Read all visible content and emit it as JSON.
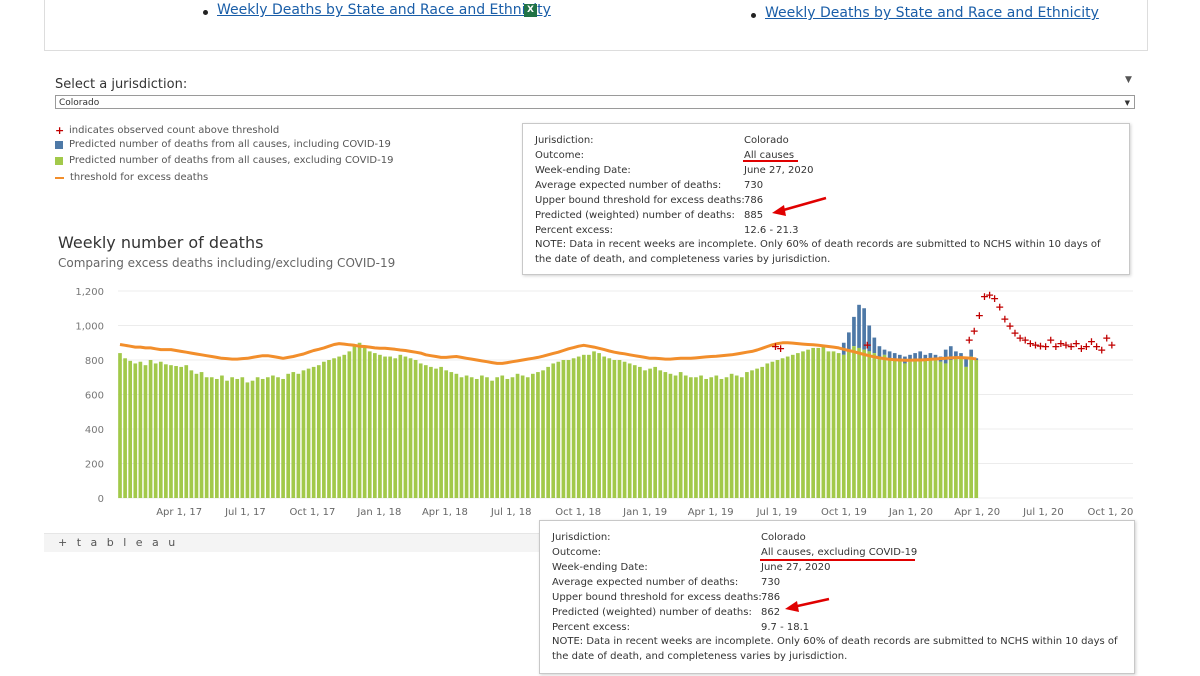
{
  "top_links": {
    "left": "Weekly Deaths by State and Race and Ethnicity",
    "right": "Weekly Deaths by State and Race and Ethnicity",
    "excel_icon": "excel-icon"
  },
  "jurisdiction": {
    "label": "Select a jurisdiction:",
    "selected": "Colorado"
  },
  "legend": {
    "above_threshold": "indicates observed count above threshold",
    "including": "Predicted number of deaths from all causes, including COVID-19",
    "excluding": "Predicted number of deaths from all causes, excluding COVID-19",
    "threshold": "threshold for excess deaths"
  },
  "colors": {
    "including": "#4e79a7",
    "excluding": "#a2c94a",
    "threshold": "#f28e2b",
    "above_threshold": "#c00000",
    "annotation": "#e00000"
  },
  "chart_data": {
    "type": "bar",
    "title": "Weekly number of deaths",
    "subtitle": "Comparing excess deaths including/excluding COVID-19",
    "ylim": [
      0,
      1200
    ],
    "yticks": [
      "1,200",
      "1,000",
      "800",
      "600",
      "400",
      "200",
      "0"
    ],
    "xticks": [
      "Apr 1, 17",
      "Jul 1, 17",
      "Oct 1, 17",
      "Jan 1, 18",
      "Apr 1, 18",
      "Jul 1, 18",
      "Oct 1, 18",
      "Jan 1, 19",
      "Apr 1, 19",
      "Jul 1, 19",
      "Oct 1, 19",
      "Jan 1, 20",
      "Apr 1, 20",
      "Jul 1, 20",
      "Oct 1, 20"
    ],
    "grid": true,
    "weeks_start": "2017-01-07",
    "series": [
      {
        "name": "Predicted number of deaths from all causes, excluding COVID-19",
        "values": [
          840,
          810,
          795,
          780,
          790,
          770,
          800,
          780,
          790,
          775,
          770,
          765,
          760,
          770,
          740,
          720,
          730,
          700,
          700,
          690,
          710,
          680,
          700,
          690,
          700,
          670,
          680,
          700,
          690,
          700,
          710,
          700,
          690,
          720,
          730,
          720,
          740,
          750,
          760,
          770,
          790,
          800,
          810,
          820,
          830,
          850,
          880,
          900,
          880,
          850,
          840,
          830,
          820,
          820,
          810,
          830,
          820,
          810,
          800,
          780,
          770,
          760,
          750,
          760,
          740,
          730,
          720,
          700,
          710,
          700,
          690,
          710,
          700,
          680,
          700,
          710,
          690,
          700,
          720,
          710,
          700,
          720,
          730,
          740,
          760,
          780,
          790,
          800,
          800,
          810,
          820,
          830,
          830,
          850,
          840,
          820,
          810,
          800,
          800,
          790,
          780,
          770,
          760,
          740,
          750,
          760,
          740,
          730,
          720,
          710,
          730,
          710,
          700,
          700,
          710,
          690,
          700,
          710,
          690,
          700,
          720,
          710,
          700,
          730,
          740,
          750,
          760,
          780,
          790,
          800,
          810,
          820,
          830,
          840,
          850,
          860,
          870,
          870,
          880,
          850,
          850,
          840,
          830,
          860,
          880,
          870,
          860,
          850,
          840,
          820,
          830,
          810,
          800,
          800,
          780,
          790,
          800,
          800,
          800,
          800,
          810,
          790,
          780,
          800,
          810,
          820,
          760,
          820,
          800
        ]
      },
      {
        "name": "Predicted number of deaths from all causes, including COVID-19",
        "values": [
          840,
          810,
          795,
          780,
          790,
          770,
          800,
          780,
          790,
          775,
          770,
          765,
          760,
          770,
          740,
          720,
          730,
          700,
          700,
          690,
          710,
          680,
          700,
          690,
          700,
          670,
          680,
          700,
          690,
          700,
          710,
          700,
          690,
          720,
          730,
          720,
          740,
          750,
          760,
          770,
          790,
          800,
          810,
          820,
          830,
          850,
          880,
          900,
          880,
          850,
          840,
          830,
          820,
          820,
          810,
          830,
          820,
          810,
          800,
          780,
          770,
          760,
          750,
          760,
          740,
          730,
          720,
          700,
          710,
          700,
          690,
          710,
          700,
          680,
          700,
          710,
          690,
          700,
          720,
          710,
          700,
          720,
          730,
          740,
          760,
          780,
          790,
          800,
          800,
          810,
          820,
          830,
          830,
          850,
          840,
          820,
          810,
          800,
          800,
          790,
          780,
          770,
          760,
          740,
          750,
          760,
          740,
          730,
          720,
          710,
          730,
          710,
          700,
          700,
          710,
          690,
          700,
          710,
          690,
          700,
          720,
          710,
          700,
          730,
          740,
          750,
          760,
          780,
          790,
          800,
          810,
          820,
          830,
          840,
          850,
          860,
          870,
          870,
          880,
          850,
          850,
          840,
          900,
          960,
          1050,
          1120,
          1100,
          1000,
          930,
          880,
          860,
          850,
          840,
          830,
          820,
          830,
          840,
          850,
          830,
          840,
          830,
          820,
          860,
          880,
          850,
          840,
          820,
          860,
          810
        ]
      },
      {
        "name": "threshold for excess deaths",
        "values": [
          890,
          885,
          880,
          875,
          875,
          870,
          870,
          865,
          860,
          860,
          860,
          855,
          850,
          845,
          840,
          835,
          830,
          825,
          820,
          815,
          810,
          808,
          805,
          805,
          808,
          810,
          815,
          820,
          825,
          825,
          820,
          815,
          810,
          815,
          820,
          828,
          835,
          845,
          855,
          862,
          870,
          880,
          890,
          895,
          892,
          888,
          885,
          880,
          878,
          875,
          870,
          868,
          868,
          865,
          862,
          858,
          855,
          850,
          845,
          840,
          830,
          825,
          820,
          815,
          815,
          818,
          820,
          815,
          810,
          805,
          800,
          795,
          790,
          785,
          780,
          780,
          785,
          790,
          795,
          800,
          805,
          810,
          815,
          822,
          830,
          838,
          845,
          855,
          865,
          872,
          880,
          885,
          880,
          875,
          868,
          860,
          852,
          845,
          840,
          836,
          830,
          825,
          820,
          815,
          810,
          810,
          808,
          805,
          805,
          808,
          810,
          810,
          810,
          812,
          815,
          818,
          820,
          822,
          825,
          828,
          830,
          835,
          840,
          845,
          850,
          858,
          868,
          878,
          888,
          895,
          900,
          900,
          898,
          895,
          892,
          890,
          888,
          885,
          882,
          878,
          875,
          870,
          862,
          855,
          848,
          840,
          832,
          825,
          818,
          812,
          808,
          804,
          802,
          800,
          798,
          798,
          800,
          800,
          802,
          804,
          806,
          808,
          810,
          812,
          814,
          814,
          812,
          810,
          806
        ]
      }
    ],
    "above_threshold_markers": [
      {
        "x": "2019-06-29",
        "y": 880
      },
      {
        "x": "2019-07-06",
        "y": 870
      },
      {
        "x": "2019-11-02",
        "y": 890
      },
      {
        "x": "2020-03-21",
        "y": 920
      },
      {
        "x": "2020-03-28",
        "y": 970
      },
      {
        "x": "2020-04-04",
        "y": 1060
      },
      {
        "x": "2020-04-11",
        "y": 1170
      },
      {
        "x": "2020-04-18",
        "y": 1180
      },
      {
        "x": "2020-04-25",
        "y": 1160
      },
      {
        "x": "2020-05-02",
        "y": 1110
      },
      {
        "x": "2020-05-09",
        "y": 1040
      },
      {
        "x": "2020-05-16",
        "y": 1000
      },
      {
        "x": "2020-05-23",
        "y": 960
      },
      {
        "x": "2020-05-30",
        "y": 930
      },
      {
        "x": "2020-06-06",
        "y": 920
      },
      {
        "x": "2020-06-13",
        "y": 900
      },
      {
        "x": "2020-06-20",
        "y": 890
      },
      {
        "x": "2020-06-27",
        "y": 885
      },
      {
        "x": "2020-07-04",
        "y": 880
      },
      {
        "x": "2020-07-11",
        "y": 920
      },
      {
        "x": "2020-07-18",
        "y": 880
      },
      {
        "x": "2020-07-25",
        "y": 900
      },
      {
        "x": "2020-08-01",
        "y": 890
      },
      {
        "x": "2020-08-08",
        "y": 880
      },
      {
        "x": "2020-08-15",
        "y": 900
      },
      {
        "x": "2020-08-22",
        "y": 870
      },
      {
        "x": "2020-08-29",
        "y": 880
      },
      {
        "x": "2020-09-05",
        "y": 910
      },
      {
        "x": "2020-09-12",
        "y": 880
      },
      {
        "x": "2020-09-19",
        "y": 860
      },
      {
        "x": "2020-09-26",
        "y": 930
      },
      {
        "x": "2020-10-03",
        "y": 890
      }
    ]
  },
  "tooltip1": {
    "jurisdiction_label": "Jurisdiction:",
    "jurisdiction": "Colorado",
    "outcome_label": "Outcome:",
    "outcome": "All causes",
    "week_label": "Week-ending Date:",
    "week": "June 27, 2020",
    "avg_label": "Average expected number of deaths:",
    "avg": "730",
    "upper_label": "Upper bound threshold for excess deaths:",
    "upper": "786",
    "predicted_label": "Predicted (weighted) number of deaths:",
    "predicted": "885",
    "percent_label": "Percent excess:",
    "percent": "12.6 - 21.3",
    "note": "NOTE: Data in recent weeks are incomplete. Only 60% of death records are submitted to NCHS within 10 days of the date of death, and completeness varies by jurisdiction."
  },
  "tooltip2": {
    "jurisdiction_label": "Jurisdiction:",
    "jurisdiction": "Colorado",
    "outcome_label": "Outcome:",
    "outcome": "All causes, excluding COVID-19",
    "week_label": "Week-ending Date:",
    "week": "June 27, 2020",
    "avg_label": "Average expected number of deaths:",
    "avg": "730",
    "upper_label": "Upper bound threshold for excess deaths:",
    "upper": "786",
    "predicted_label": "Predicted (weighted) number of deaths:",
    "predicted": "862",
    "percent_label": "Percent excess:",
    "percent": "9.7 - 18.1",
    "note": "NOTE: Data in recent weeks are incomplete. Only 60% of death records are submitted to NCHS within 10 days of the date of death, and completeness varies by jurisdiction."
  },
  "footer": {
    "tableau": "+ t a b l e a u"
  }
}
